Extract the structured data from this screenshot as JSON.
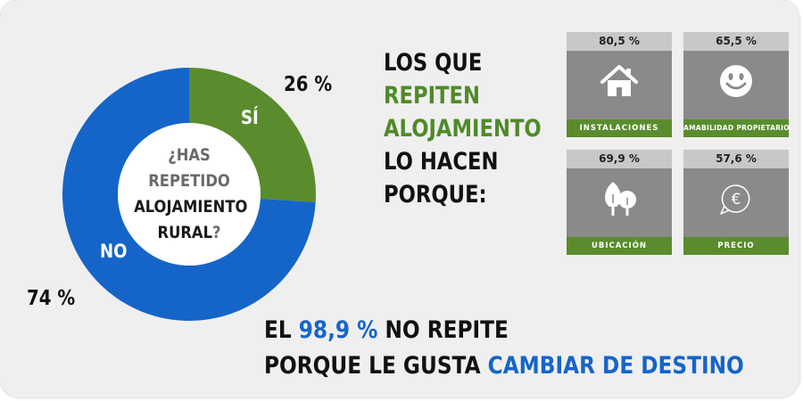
{
  "colors": {
    "green": "#5a8c2e",
    "blue": "#1565c9",
    "tile_gray": "#8a8a8a",
    "background": "#efefef"
  },
  "donut": {
    "question_line1": "¿HAS",
    "question_line2": "REPETIDO",
    "question_line3": "ALOJAMIENTO",
    "question_line4": "RURAL",
    "question_mark": "?",
    "yes_label": "SÍ",
    "no_label": "NO",
    "yes_pct_text": "26 %",
    "no_pct_text": "74 %"
  },
  "headline": {
    "line1": "LOS QUE",
    "line2": "REPITEN",
    "line3": "ALOJAMIENTO",
    "line4": "LO HACEN",
    "line5": "PORQUE:"
  },
  "bottom": {
    "line1_a": "EL ",
    "line1_b": "98,9 %",
    "line1_c": " NO REPITE",
    "line2_a": "PORQUE LE GUSTA ",
    "line2_b": "CAMBIAR DE DESTINO"
  },
  "tiles": [
    {
      "pct": "80,5 %",
      "label": "INSTALACIONES",
      "icon": "house-icon"
    },
    {
      "pct": "65,5 %",
      "label": "AMABILIDAD PROPIETARIO",
      "icon": "smiley-icon"
    },
    {
      "pct": "69,9 %",
      "label": "UBICACIÓN",
      "icon": "tree-icon"
    },
    {
      "pct": "57,6 %",
      "label": "PRECIO",
      "icon": "euro-icon"
    }
  ],
  "chart_data": {
    "type": "pie",
    "variant": "donut",
    "categories": [
      "SÍ",
      "NO"
    ],
    "values": [
      26,
      74
    ],
    "colors": [
      "#5a8c2e",
      "#1565c9"
    ],
    "title": "¿HAS REPETIDO ALOJAMIENTO RURAL?"
  }
}
